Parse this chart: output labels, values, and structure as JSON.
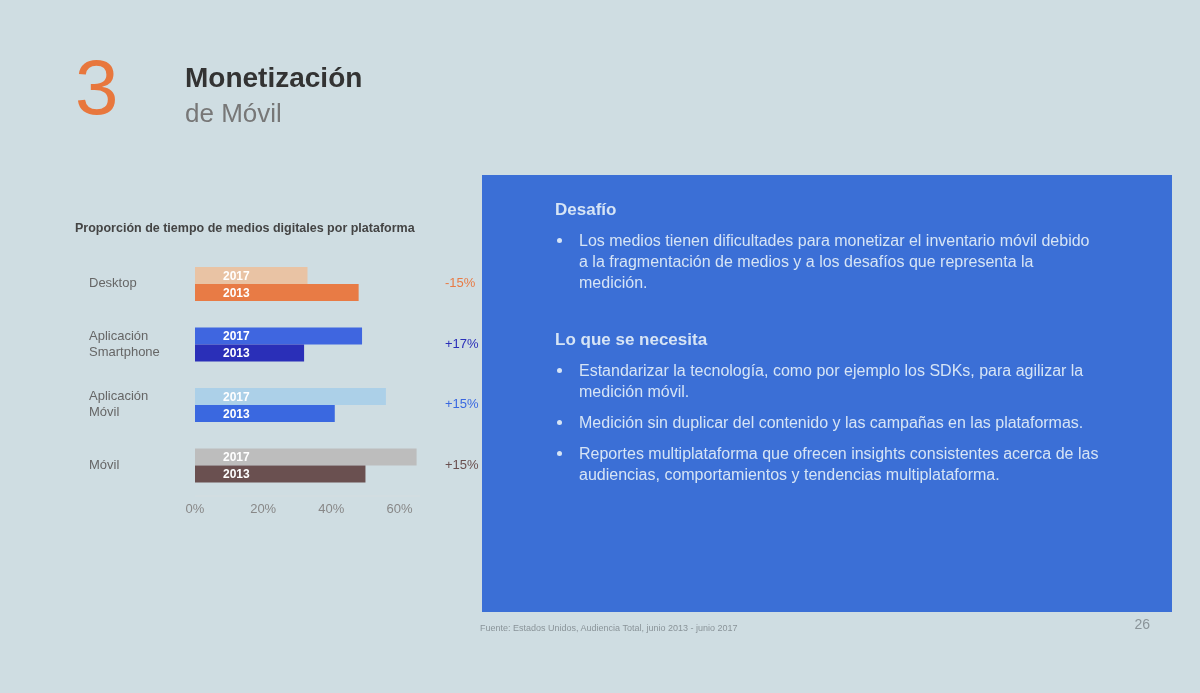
{
  "chart_data": [
    {
      "type": "other",
      "title": "Monetización",
      "subtitle": "de Móvil",
      "annotations": [
        "3"
      ]
    },
    {
      "type": "bar",
      "orientation": "horizontal",
      "title": "Proporción de tiempo de medios digitales por plataforma",
      "categories": [
        "Desktop",
        "Aplicación Smartphone",
        "Aplicación Móvil",
        "Móvil"
      ],
      "series": [
        {
          "name": "2017",
          "colors": [
            "#e9c3a4",
            "#3f66e0",
            "#acd0e8",
            "#bdbdbd"
          ],
          "values": [
            33,
            49,
            56,
            65
          ]
        },
        {
          "name": "2013",
          "colors": [
            "#e87b45",
            "#2a2fb8",
            "#3a68e0",
            "#6a5050"
          ],
          "values": [
            48,
            32,
            41,
            50
          ]
        }
      ],
      "xlim": [
        0,
        66
      ],
      "xticks": [
        {
          "value": 0,
          "label": "0%"
        },
        {
          "value": 20,
          "label": "20%"
        },
        {
          "value": 40,
          "label": "40%"
        },
        {
          "value": 60,
          "label": "60%"
        }
      ],
      "annotations": [
        "-15%",
        "+17%",
        "+15%",
        "+15%"
      ]
    },
    {
      "type": "other",
      "title": "Desafío",
      "annotations": [
        "Los medios tienen dificultades para monetizar el inventario móvil debido a la fragmentación de medios y a los desafíos que representa la medición."
      ]
    },
    {
      "type": "other",
      "title": "Lo que se necesita",
      "annotations": [
        "Estandarizar la tecnología, como por ejemplo los SDKs, para agilizar la medición móvil.",
        "Medición sin duplicar del contenido y las campañas en las plataformas.",
        "Reportes multiplataforma que ofrecen insights consistentes acerca de las audiencias, comportamientos y tendencias multiplataforma."
      ]
    },
    {
      "type": "other",
      "annotations": [
        "Fuente: Estados Unidos, Audiencia Total, junio 2013 - junio 2017",
        "26"
      ]
    }
  ]
}
